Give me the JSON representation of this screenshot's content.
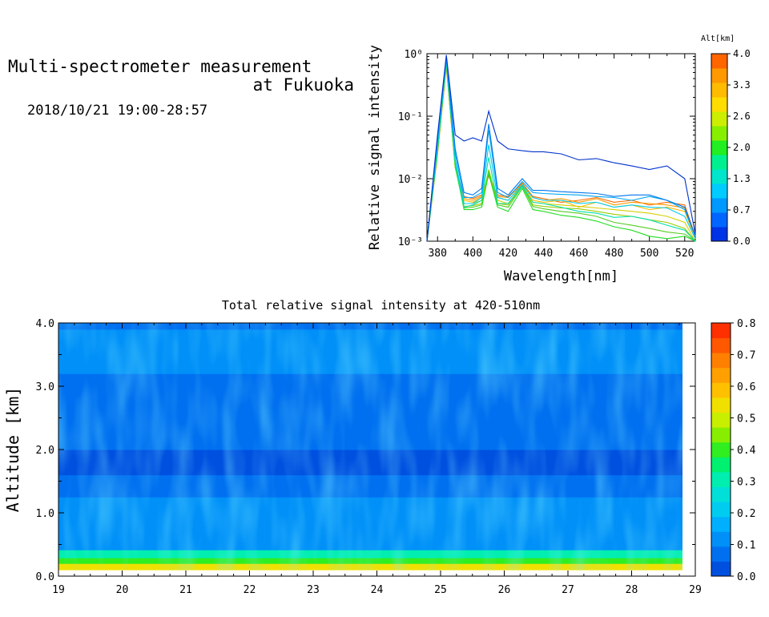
{
  "header": {
    "title_line1": "Multi-spectrometer measurement",
    "title_line2": "at Fukuoka",
    "date_range": "2018/10/21 19:00-28:57"
  },
  "chart_data": [
    {
      "type": "line",
      "title": "",
      "xlabel": "Wavelength[nm]",
      "ylabel": "Relative signal intensity",
      "y_scale": "log",
      "xlim": [
        374,
        526
      ],
      "ylim": [
        0.001,
        1
      ],
      "x_ticks": [
        "380",
        "400",
        "420",
        "440",
        "460",
        "480",
        "500",
        "520"
      ],
      "y_ticks": [
        "10⁻³",
        "10⁻²",
        "10⁻¹",
        "10⁰"
      ],
      "x": [
        374,
        380,
        385,
        390,
        395,
        400,
        405,
        409,
        414,
        420,
        428,
        434,
        440,
        450,
        460,
        470,
        480,
        490,
        500,
        510,
        520,
        526
      ],
      "colorbar": {
        "label": "Alt[km]",
        "ticks": [
          "0.0",
          "0.7",
          "1.3",
          "2.0",
          "2.6",
          "3.3",
          "4.0"
        ],
        "colors": [
          "#0033e6",
          "#0066ff",
          "#0099ff",
          "#00ccff",
          "#00e6cc",
          "#00f090",
          "#22ee22",
          "#88ee00",
          "#ccee00",
          "#ffdd00",
          "#ffbb00",
          "#ff9900",
          "#ff6600"
        ]
      },
      "series": [
        {
          "color": "#0033cc",
          "values": [
            0.001,
            0.05,
            0.95,
            0.05,
            0.04,
            0.045,
            0.04,
            0.12,
            0.04,
            0.03,
            0.028,
            0.027,
            0.027,
            0.025,
            0.02,
            0.021,
            0.018,
            0.016,
            0.014,
            0.016,
            0.01,
            0.0013
          ]
        },
        {
          "color": "#0077ee",
          "values": [
            0.001,
            0.045,
            0.9,
            0.03,
            0.006,
            0.0055,
            0.007,
            0.075,
            0.007,
            0.0055,
            0.01,
            0.0065,
            0.0065,
            0.0062,
            0.006,
            0.0058,
            0.0052,
            0.0055,
            0.0055,
            0.0045,
            0.0035,
            0.0012
          ]
        },
        {
          "color": "#00a8f0",
          "values": [
            0.001,
            0.04,
            0.85,
            0.025,
            0.005,
            0.005,
            0.006,
            0.06,
            0.006,
            0.005,
            0.009,
            0.006,
            0.0058,
            0.0056,
            0.0055,
            0.0052,
            0.005,
            0.0045,
            0.0052,
            0.0045,
            0.0032,
            0.0012
          ]
        },
        {
          "color": "#00ccee",
          "values": [
            0.001,
            0.035,
            0.8,
            0.02,
            0.004,
            0.004,
            0.005,
            0.035,
            0.005,
            0.0045,
            0.008,
            0.005,
            0.0045,
            0.0045,
            0.004,
            0.0042,
            0.0035,
            0.0038,
            0.0035,
            0.0034,
            0.0025,
            0.0011
          ]
        },
        {
          "color": "#00e0b0",
          "values": [
            0.001,
            0.03,
            0.75,
            0.018,
            0.0035,
            0.0038,
            0.0045,
            0.022,
            0.004,
            0.004,
            0.0075,
            0.0042,
            0.004,
            0.0035,
            0.003,
            0.0028,
            0.0024,
            0.0025,
            0.0022,
            0.0018,
            0.0015,
            0.0009
          ]
        },
        {
          "color": "#22dd22",
          "values": [
            0.001,
            0.028,
            0.72,
            0.016,
            0.0032,
            0.0032,
            0.0035,
            0.012,
            0.0035,
            0.003,
            0.007,
            0.0032,
            0.003,
            0.0026,
            0.0024,
            0.0021,
            0.0017,
            0.0015,
            0.0012,
            0.0011,
            0.0012,
            0.0009
          ]
        },
        {
          "color": "#55cc22",
          "values": [
            0.001,
            0.027,
            0.7,
            0.016,
            0.0034,
            0.0035,
            0.0038,
            0.013,
            0.0038,
            0.0035,
            0.0075,
            0.0036,
            0.0033,
            0.003,
            0.0028,
            0.0025,
            0.002,
            0.0018,
            0.0016,
            0.0014,
            0.0013,
            0.0009
          ]
        },
        {
          "color": "#99cc00",
          "values": [
            0.001,
            0.026,
            0.68,
            0.015,
            0.0036,
            0.0037,
            0.004,
            0.014,
            0.004,
            0.0038,
            0.0078,
            0.0038,
            0.0036,
            0.0034,
            0.0033,
            0.003,
            0.0027,
            0.0025,
            0.0022,
            0.002,
            0.0016,
            0.001
          ]
        },
        {
          "color": "#d4d000",
          "values": [
            0.001,
            0.026,
            0.66,
            0.015,
            0.004,
            0.004,
            0.0045,
            0.012,
            0.0045,
            0.004,
            0.008,
            0.0042,
            0.004,
            0.0038,
            0.0036,
            0.0034,
            0.0032,
            0.003,
            0.0028,
            0.0025,
            0.002,
            0.001
          ]
        },
        {
          "color": "#ffbb00",
          "values": [
            0.001,
            0.025,
            0.65,
            0.015,
            0.0045,
            0.0042,
            0.005,
            0.012,
            0.005,
            0.0045,
            0.008,
            0.0045,
            0.0042,
            0.0045,
            0.0035,
            0.0042,
            0.0035,
            0.0038,
            0.0032,
            0.0035,
            0.003,
            0.0011
          ]
        },
        {
          "color": "#ff9900",
          "values": [
            0.001,
            0.025,
            0.64,
            0.015,
            0.0048,
            0.0045,
            0.0052,
            0.012,
            0.0052,
            0.005,
            0.0082,
            0.005,
            0.0045,
            0.0048,
            0.0042,
            0.0048,
            0.0038,
            0.0042,
            0.004,
            0.0038,
            0.0034,
            0.0012
          ]
        },
        {
          "color": "#ff6a00",
          "values": [
            0.001,
            0.025,
            0.63,
            0.015,
            0.0052,
            0.0048,
            0.0055,
            0.011,
            0.0055,
            0.0052,
            0.0085,
            0.0052,
            0.0048,
            0.0042,
            0.0045,
            0.005,
            0.0042,
            0.0045,
            0.0038,
            0.0042,
            0.0038,
            0.0012
          ]
        }
      ]
    },
    {
      "type": "heatmap",
      "title": "Total relative signal intensity at 420-510nm",
      "xlabel": "",
      "ylabel": "Altitude [km]",
      "xlim": [
        19,
        29
      ],
      "ylim": [
        0,
        4
      ],
      "data_x_range": [
        19,
        28.8
      ],
      "x_ticks": [
        "19",
        "20",
        "21",
        "22",
        "23",
        "24",
        "25",
        "26",
        "27",
        "28",
        "29"
      ],
      "y_ticks": [
        "0.0",
        "1.0",
        "2.0",
        "3.0",
        "4.0"
      ],
      "colorbar": {
        "range": [
          0,
          0.8
        ],
        "ticks": [
          "0.0",
          "0.1",
          "0.2",
          "0.3",
          "0.4",
          "0.5",
          "0.6",
          "0.7",
          "0.8"
        ],
        "colors": [
          "#0050e0",
          "#0070f0",
          "#0090f8",
          "#00b0ff",
          "#00ccf0",
          "#00e0d8",
          "#00eeb0",
          "#00f070",
          "#30ee20",
          "#88ee00",
          "#c8ee00",
          "#f0e000",
          "#ffc000",
          "#ffa000",
          "#ff8000",
          "#ff5800",
          "#ff3000"
        ]
      },
      "altitude_profile": [
        {
          "alt": 0.15,
          "value": 0.55
        },
        {
          "alt": 0.25,
          "value": 0.38
        },
        {
          "alt": 0.33,
          "value": 0.3
        },
        {
          "alt": 0.5,
          "value": 0.13
        },
        {
          "alt": 0.8,
          "value": 0.12
        },
        {
          "alt": 1.1,
          "value": 0.1
        },
        {
          "alt": 1.4,
          "value": 0.07
        },
        {
          "alt": 1.8,
          "value": 0.04
        },
        {
          "alt": 2.2,
          "value": 0.05
        },
        {
          "alt": 2.6,
          "value": 0.06
        },
        {
          "alt": 3.0,
          "value": 0.08
        },
        {
          "alt": 3.4,
          "value": 0.1
        },
        {
          "alt": 3.8,
          "value": 0.12
        },
        {
          "alt": 4.0,
          "value": 0.09
        }
      ]
    }
  ]
}
